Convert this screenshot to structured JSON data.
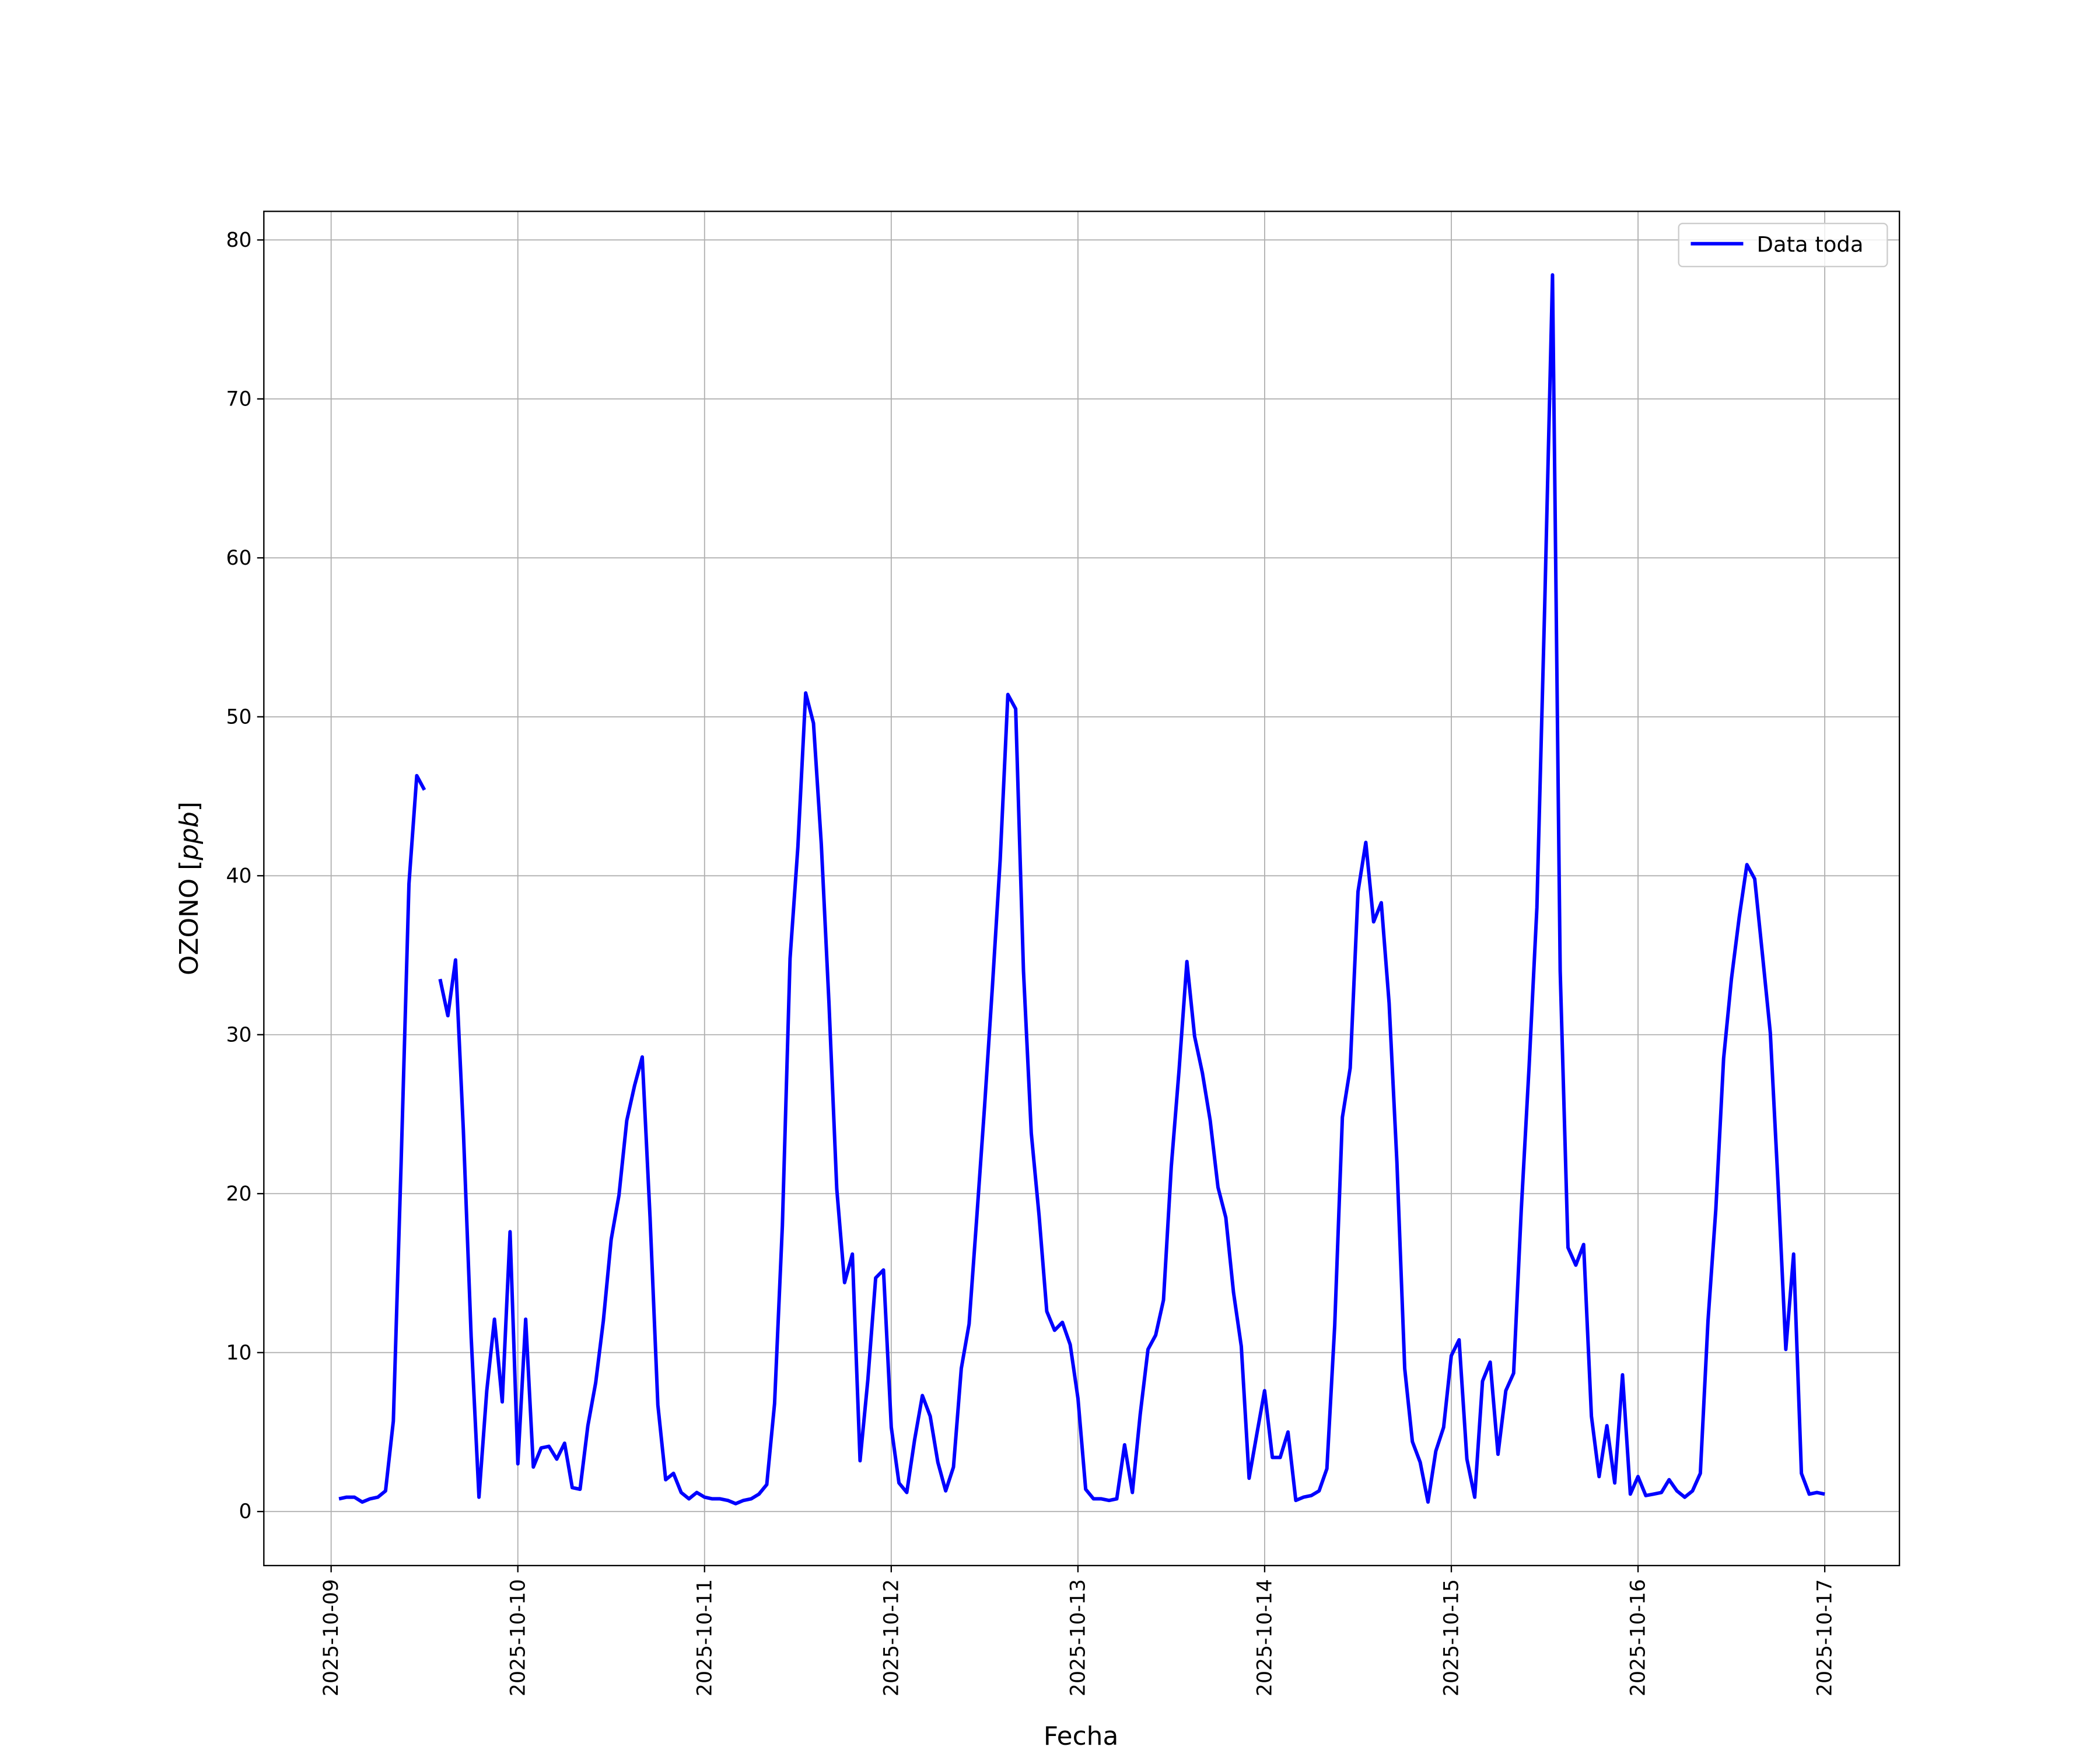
{
  "chart_data": {
    "type": "line",
    "title": "",
    "xlabel": "Fecha",
    "ylabel": "OZONO [",
    "ylabel_italic": "ppb",
    "ylabel_end": "]",
    "xlim": [
      "2025-10-08 15:21",
      "2025-10-17 09:36"
    ],
    "ylim": [
      -3.4,
      81.8
    ],
    "grid": true,
    "legend_placement": "top-right",
    "x_ticks": [
      "2025-10-09",
      "2025-10-10",
      "2025-10-11",
      "2025-10-12",
      "2025-10-13",
      "2025-10-14",
      "2025-10-15",
      "2025-10-16",
      "2025-10-17"
    ],
    "y_ticks": [
      0,
      10,
      20,
      30,
      40,
      50,
      60,
      70,
      80
    ],
    "series": [
      {
        "name": "Data toda",
        "color": "#0000ff",
        "x": [
          "2025-10-09 01:00",
          "2025-10-09 02:00",
          "2025-10-09 03:00",
          "2025-10-09 04:00",
          "2025-10-09 05:00",
          "2025-10-09 06:00",
          "2025-10-09 07:00",
          "2025-10-09 08:00",
          "2025-10-09 09:00",
          "2025-10-09 10:00",
          "2025-10-09 11:00",
          "2025-10-09 12:00",
          "2025-10-09 13:00",
          "2025-10-09 14:00",
          "2025-10-09 15:00",
          "2025-10-09 16:00",
          "2025-10-09 17:00",
          "2025-10-09 18:00",
          "2025-10-09 19:00",
          "2025-10-09 20:00",
          "2025-10-09 21:00",
          "2025-10-09 22:00",
          "2025-10-09 23:00",
          "2025-10-10 00:00",
          "2025-10-10 01:00",
          "2025-10-10 02:00",
          "2025-10-10 03:00",
          "2025-10-10 04:00",
          "2025-10-10 05:00",
          "2025-10-10 06:00",
          "2025-10-10 07:00",
          "2025-10-10 08:00",
          "2025-10-10 09:00",
          "2025-10-10 10:00",
          "2025-10-10 11:00",
          "2025-10-10 12:00",
          "2025-10-10 13:00",
          "2025-10-10 14:00",
          "2025-10-10 15:00",
          "2025-10-10 16:00",
          "2025-10-10 17:00",
          "2025-10-10 18:00",
          "2025-10-10 19:00",
          "2025-10-10 20:00",
          "2025-10-10 21:00",
          "2025-10-10 22:00",
          "2025-10-10 23:00",
          "2025-10-11 00:00",
          "2025-10-11 01:00",
          "2025-10-11 02:00",
          "2025-10-11 03:00",
          "2025-10-11 04:00",
          "2025-10-11 05:00",
          "2025-10-11 06:00",
          "2025-10-11 07:00",
          "2025-10-11 08:00",
          "2025-10-11 09:00",
          "2025-10-11 10:00",
          "2025-10-11 11:00",
          "2025-10-11 12:00",
          "2025-10-11 13:00",
          "2025-10-11 14:00",
          "2025-10-11 15:00",
          "2025-10-11 16:00",
          "2025-10-11 17:00",
          "2025-10-11 18:00",
          "2025-10-11 19:00",
          "2025-10-11 20:00",
          "2025-10-11 21:00",
          "2025-10-11 22:00",
          "2025-10-11 23:00",
          "2025-10-12 00:00",
          "2025-10-12 01:00",
          "2025-10-12 02:00",
          "2025-10-12 03:00",
          "2025-10-12 04:00",
          "2025-10-12 05:00",
          "2025-10-12 06:00",
          "2025-10-12 07:00",
          "2025-10-12 08:00",
          "2025-10-12 09:00",
          "2025-10-12 10:00",
          "2025-10-12 11:00",
          "2025-10-12 12:00",
          "2025-10-12 13:00",
          "2025-10-12 14:00",
          "2025-10-12 15:00",
          "2025-10-12 16:00",
          "2025-10-12 17:00",
          "2025-10-12 18:00",
          "2025-10-12 19:00",
          "2025-10-12 20:00",
          "2025-10-12 21:00",
          "2025-10-12 22:00",
          "2025-10-12 23:00",
          "2025-10-13 00:00",
          "2025-10-13 01:00",
          "2025-10-13 02:00",
          "2025-10-13 03:00",
          "2025-10-13 04:00",
          "2025-10-13 05:00",
          "2025-10-13 06:00",
          "2025-10-13 07:00",
          "2025-10-13 08:00",
          "2025-10-13 09:00",
          "2025-10-13 10:00",
          "2025-10-13 11:00",
          "2025-10-13 12:00",
          "2025-10-13 13:00",
          "2025-10-13 14:00",
          "2025-10-13 15:00",
          "2025-10-13 16:00",
          "2025-10-13 17:00",
          "2025-10-13 18:00",
          "2025-10-13 19:00",
          "2025-10-13 20:00",
          "2025-10-13 21:00",
          "2025-10-13 22:00",
          "2025-10-13 23:00",
          "2025-10-14 00:00",
          "2025-10-14 01:00",
          "2025-10-14 02:00",
          "2025-10-14 03:00",
          "2025-10-14 04:00",
          "2025-10-14 05:00",
          "2025-10-14 06:00",
          "2025-10-14 07:00",
          "2025-10-14 08:00",
          "2025-10-14 09:00",
          "2025-10-14 10:00",
          "2025-10-14 11:00",
          "2025-10-14 12:00",
          "2025-10-14 13:00",
          "2025-10-14 14:00",
          "2025-10-14 15:00",
          "2025-10-14 16:00",
          "2025-10-14 17:00",
          "2025-10-14 18:00",
          "2025-10-14 19:00",
          "2025-10-14 20:00",
          "2025-10-14 21:00",
          "2025-10-14 22:00",
          "2025-10-14 23:00",
          "2025-10-15 00:00",
          "2025-10-15 01:00",
          "2025-10-15 02:00",
          "2025-10-15 03:00",
          "2025-10-15 04:00",
          "2025-10-15 05:00",
          "2025-10-15 06:00",
          "2025-10-15 07:00",
          "2025-10-15 08:00",
          "2025-10-15 09:00",
          "2025-10-15 10:00",
          "2025-10-15 11:00",
          "2025-10-15 12:00",
          "2025-10-15 13:00",
          "2025-10-15 14:00",
          "2025-10-15 15:00",
          "2025-10-15 16:00",
          "2025-10-15 17:00",
          "2025-10-15 18:00",
          "2025-10-15 19:00",
          "2025-10-15 20:00",
          "2025-10-15 21:00",
          "2025-10-15 22:00",
          "2025-10-15 23:00",
          "2025-10-16 00:00",
          "2025-10-16 01:00",
          "2025-10-16 02:00",
          "2025-10-16 03:00",
          "2025-10-16 04:00",
          "2025-10-16 05:00",
          "2025-10-16 06:00",
          "2025-10-16 07:00",
          "2025-10-16 08:00",
          "2025-10-16 09:00",
          "2025-10-16 10:00",
          "2025-10-16 11:00",
          "2025-10-16 12:00",
          "2025-10-16 13:00",
          "2025-10-16 14:00",
          "2025-10-16 15:00",
          "2025-10-16 16:00",
          "2025-10-16 17:00",
          "2025-10-16 18:00",
          "2025-10-16 19:00",
          "2025-10-16 20:00",
          "2025-10-16 21:00",
          "2025-10-16 22:00",
          "2025-10-16 23:00",
          "2025-10-17 00:00"
        ],
        "values": [
          0.8,
          0.9,
          0.9,
          0.6,
          0.8,
          0.9,
          1.3,
          5.7,
          22,
          39.5,
          46.3,
          45.4,
          null,
          33.5,
          31.2,
          34.7,
          24,
          11,
          0.9,
          7.6,
          12.1,
          6.9,
          17.6,
          3.0,
          12.1,
          2.8,
          4.0,
          4.1,
          3.3,
          4.3,
          1.5,
          1.4,
          5.4,
          8.1,
          12,
          17.1,
          19.9,
          24.6,
          26.8,
          28.6,
          18.5,
          6.7,
          2.0,
          2.4,
          1.2,
          0.8,
          1.2,
          0.9,
          0.8,
          0.8,
          0.7,
          0.5,
          0.7,
          0.8,
          1.1,
          1.7,
          6.8,
          18.0,
          34.8,
          41.8,
          51.5,
          49.6,
          42,
          32,
          20.3,
          14.4,
          16.2,
          3.2,
          8.3,
          14.7,
          15.2,
          5.3,
          1.8,
          1.2,
          4.5,
          7.3,
          6.0,
          3.1,
          1.3,
          2.8,
          9.0,
          11.8,
          18.5,
          25.5,
          33,
          41,
          51.4,
          50.5,
          34,
          23.8,
          18.6,
          12.6,
          11.4,
          11.9,
          10.5,
          7.1,
          1.4,
          0.8,
          0.8,
          0.7,
          0.8,
          4.2,
          1.2,
          6.1,
          10.2,
          11.1,
          13.3,
          21.7,
          27.8,
          34.6,
          29.9,
          27.6,
          24.6,
          20.4,
          18.5,
          13.8,
          10.4,
          2.1,
          4.9,
          7.6,
          3.4,
          3.4,
          5.0,
          0.7,
          0.9,
          1.0,
          1.3,
          2.7,
          11.7,
          24.8,
          27.9,
          39,
          42.1,
          37.1,
          38.3,
          32,
          22,
          9,
          4.4,
          3.1,
          0.6,
          3.8,
          5.3,
          9.8,
          10.8,
          3.3,
          0.9,
          8.2,
          9.4,
          3.6,
          7.6,
          8.7,
          19,
          28,
          38,
          57,
          77.8,
          34,
          16.6,
          15.5,
          16.8,
          6.0,
          2.2,
          5.4,
          1.8,
          8.6,
          1.1,
          2.2,
          1.0,
          1.1,
          1.2,
          2.0,
          1.3,
          0.9,
          1.3,
          2.4,
          12,
          19,
          28.5,
          33.5,
          37.4,
          40.7,
          39.8,
          35,
          30.1,
          20.5,
          10.2,
          16.2,
          2.4,
          1.1,
          1.2,
          1.1
        ]
      }
    ]
  }
}
